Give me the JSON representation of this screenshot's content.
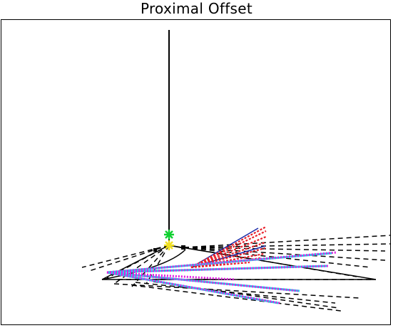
{
  "title": "Proximal Offset",
  "colors": {
    "background": "#ffffff",
    "frame": "#000000",
    "structure": "#000000",
    "dashed": "#000000",
    "red": "#e8202a",
    "blue": "#1a2aa8",
    "magenta": "#e020e0",
    "cyan": "#20d0e8",
    "green_marker": "#10d030",
    "yellow_marker": "#f0e020"
  },
  "markers": {
    "green": "green-asterisk",
    "yellow": "yellow-asterisk"
  }
}
